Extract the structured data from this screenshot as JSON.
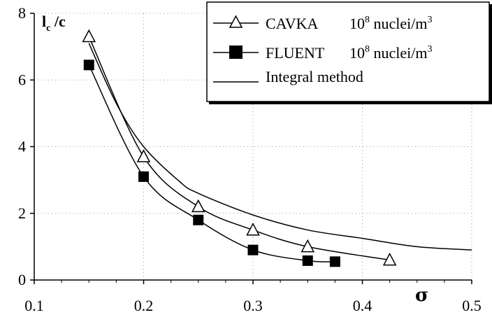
{
  "chart_data": {
    "type": "line",
    "ylabel": {
      "main": "l",
      "sub": "c",
      "rest": " /c"
    },
    "xlabel": "σ",
    "xlim": [
      0.1,
      0.5
    ],
    "ylim": [
      0,
      8
    ],
    "xticks": [
      0.1,
      0.2,
      0.3,
      0.4,
      0.5
    ],
    "xtick_labels": [
      "0.1",
      "0.2",
      "0.3",
      "0.4",
      "0.5"
    ],
    "yticks": [
      0,
      2,
      4,
      6,
      8
    ],
    "ytick_labels": [
      "0",
      "2",
      "4",
      "6",
      "8"
    ],
    "grid": true,
    "legend_position": "top-right",
    "series": [
      {
        "name": "CAVKA",
        "legend_extra": {
          "base": "10",
          "exp": "8",
          "mid": " nuclei/m",
          "unit_exp": "3"
        },
        "marker": "open-triangle",
        "color": "#000000",
        "x": [
          0.15,
          0.2,
          0.25,
          0.3,
          0.35,
          0.425
        ],
        "y": [
          7.3,
          3.7,
          2.2,
          1.5,
          1.0,
          0.6
        ]
      },
      {
        "name": "FLUENT",
        "legend_extra": {
          "base": "10",
          "exp": "8",
          "mid": " nuclei/m",
          "unit_exp": "3"
        },
        "marker": "filled-square",
        "color": "#000000",
        "x": [
          0.15,
          0.2,
          0.25,
          0.3,
          0.35,
          0.375
        ],
        "y": [
          6.45,
          3.1,
          1.8,
          0.9,
          0.58,
          0.55
        ]
      },
      {
        "name": "Integral method",
        "marker": "none",
        "color": "#000000",
        "x": [
          0.15,
          0.175,
          0.2,
          0.233,
          0.25,
          0.3,
          0.35,
          0.4,
          0.45,
          0.5
        ],
        "y": [
          7.1,
          5.3,
          4.0,
          2.95,
          2.6,
          1.95,
          1.5,
          1.25,
          1.0,
          0.9
        ]
      }
    ]
  }
}
